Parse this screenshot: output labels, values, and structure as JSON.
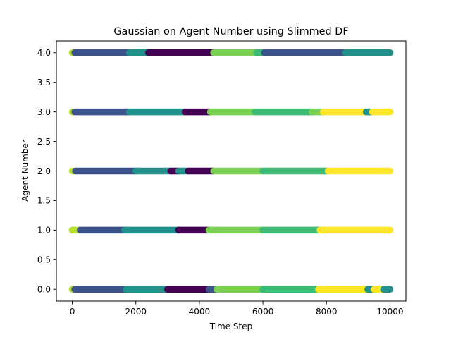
{
  "chart_data": {
    "type": "scatter",
    "title": "Gaussian on Agent Number using Slimmed DF",
    "xlabel": "Time Step",
    "ylabel": "Agent Number",
    "xlim": [
      -500,
      10500
    ],
    "ylim": [
      -0.2,
      4.2
    ],
    "xticks": [
      0,
      2000,
      4000,
      6000,
      8000,
      10000
    ],
    "xtick_labels": [
      "0",
      "2000",
      "4000",
      "6000",
      "8000",
      "10000"
    ],
    "yticks": [
      0.0,
      0.5,
      1.0,
      1.5,
      2.0,
      2.5,
      3.0,
      3.5,
      4.0
    ],
    "ytick_labels": [
      "0.0",
      "0.5",
      "1.0",
      "1.5",
      "2.0",
      "2.5",
      "3.0",
      "3.5",
      "4.0"
    ],
    "grid": false,
    "legend": "none",
    "colormap": "viridis",
    "colors": {
      "c0": "#440154",
      "c1": "#3b528b",
      "c2": "#21918c",
      "c3": "#3cbb75",
      "c4": "#7ad151",
      "c5": "#b5de2b",
      "c6": "#fde725"
    },
    "rows": [
      {
        "agent": 0,
        "segments": [
          {
            "x0": 0,
            "x1": 80,
            "c": "c5"
          },
          {
            "x0": 80,
            "x1": 1700,
            "c": "c1"
          },
          {
            "x0": 1700,
            "x1": 3000,
            "c": "c2"
          },
          {
            "x0": 3000,
            "x1": 4300,
            "c": "c0"
          },
          {
            "x0": 4300,
            "x1": 4550,
            "c": "c1"
          },
          {
            "x0": 4550,
            "x1": 6000,
            "c": "c4"
          },
          {
            "x0": 6000,
            "x1": 7750,
            "c": "c3"
          },
          {
            "x0": 7750,
            "x1": 9300,
            "c": "c6"
          },
          {
            "x0": 9300,
            "x1": 9500,
            "c": "c2"
          },
          {
            "x0": 9500,
            "x1": 9800,
            "c": "c6"
          },
          {
            "x0": 9800,
            "x1": 10000,
            "c": "c2"
          }
        ]
      },
      {
        "agent": 1,
        "segments": [
          {
            "x0": 0,
            "x1": 250,
            "c": "c5"
          },
          {
            "x0": 250,
            "x1": 1650,
            "c": "c1"
          },
          {
            "x0": 1650,
            "x1": 3350,
            "c": "c2"
          },
          {
            "x0": 3350,
            "x1": 4300,
            "c": "c0"
          },
          {
            "x0": 4300,
            "x1": 4550,
            "c": "c4"
          },
          {
            "x0": 4550,
            "x1": 6000,
            "c": "c4"
          },
          {
            "x0": 6000,
            "x1": 7800,
            "c": "c3"
          },
          {
            "x0": 7800,
            "x1": 10000,
            "c": "c6"
          }
        ]
      },
      {
        "agent": 2,
        "segments": [
          {
            "x0": 0,
            "x1": 100,
            "c": "c5"
          },
          {
            "x0": 100,
            "x1": 2000,
            "c": "c1"
          },
          {
            "x0": 2000,
            "x1": 3100,
            "c": "c2"
          },
          {
            "x0": 3100,
            "x1": 3350,
            "c": "c0"
          },
          {
            "x0": 3350,
            "x1": 3650,
            "c": "c2"
          },
          {
            "x0": 3650,
            "x1": 4450,
            "c": "c0"
          },
          {
            "x0": 4450,
            "x1": 6000,
            "c": "c4"
          },
          {
            "x0": 6000,
            "x1": 8050,
            "c": "c3"
          },
          {
            "x0": 8050,
            "x1": 10000,
            "c": "c6"
          }
        ]
      },
      {
        "agent": 3,
        "segments": [
          {
            "x0": 0,
            "x1": 80,
            "c": "c5"
          },
          {
            "x0": 80,
            "x1": 1800,
            "c": "c1"
          },
          {
            "x0": 1800,
            "x1": 3550,
            "c": "c2"
          },
          {
            "x0": 3550,
            "x1": 4350,
            "c": "c0"
          },
          {
            "x0": 4350,
            "x1": 5750,
            "c": "c4"
          },
          {
            "x0": 5750,
            "x1": 7550,
            "c": "c3"
          },
          {
            "x0": 7550,
            "x1": 7900,
            "c": "c4"
          },
          {
            "x0": 7900,
            "x1": 9250,
            "c": "c6"
          },
          {
            "x0": 9250,
            "x1": 9450,
            "c": "c2"
          },
          {
            "x0": 9450,
            "x1": 9700,
            "c": "c6"
          },
          {
            "x0": 9700,
            "x1": 10000,
            "c": "c6"
          }
        ]
      },
      {
        "agent": 4,
        "segments": [
          {
            "x0": 0,
            "x1": 80,
            "c": "c5"
          },
          {
            "x0": 80,
            "x1": 1800,
            "c": "c1"
          },
          {
            "x0": 1800,
            "x1": 2400,
            "c": "c2"
          },
          {
            "x0": 2400,
            "x1": 4450,
            "c": "c0"
          },
          {
            "x0": 4450,
            "x1": 5800,
            "c": "c4"
          },
          {
            "x0": 5800,
            "x1": 6050,
            "c": "c3"
          },
          {
            "x0": 6050,
            "x1": 6050,
            "c": "c2"
          },
          {
            "x0": 6050,
            "x1": 8600,
            "c": "c1"
          },
          {
            "x0": 8600,
            "x1": 10000,
            "c": "c2"
          }
        ]
      }
    ]
  }
}
